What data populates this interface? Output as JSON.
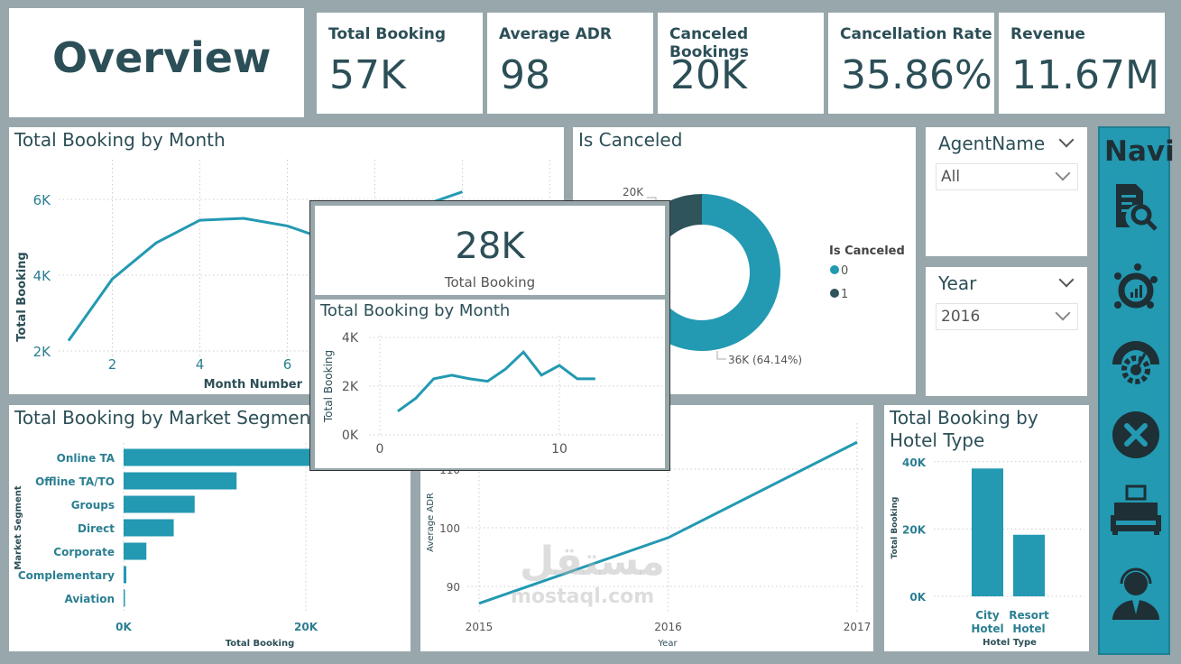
{
  "header": {
    "title": "Overview"
  },
  "kpis": [
    {
      "label": "Total Booking",
      "value": "57K"
    },
    {
      "label": "Average ADR",
      "value": "98"
    },
    {
      "label": "Canceled Bookings",
      "value": "20K"
    },
    {
      "label": "Cancellation Rate",
      "value": "35.86%"
    },
    {
      "label": "Revenue",
      "value": "11.67M"
    }
  ],
  "slicers": {
    "agent": {
      "title": "AgentName",
      "value": "All"
    },
    "year": {
      "title": "Year",
      "value": "2016"
    }
  },
  "nav": {
    "title": "Navi",
    "icons": [
      "report-search-icon",
      "customer-analytics-icon",
      "performance-gauge-icon",
      "cancel-icon",
      "hotel-room-icon",
      "support-agent-icon"
    ]
  },
  "tooltip": {
    "value": "28K",
    "label": "Total Booking"
  },
  "watermark": {
    "arabic": "مستقل",
    "latin": "mostaql.com"
  },
  "colors": {
    "accent": "#2399b2",
    "dark": "#2f545c",
    "background": "#97a7ab"
  },
  "chart_data": [
    {
      "id": "month",
      "type": "line",
      "title": "Total Booking by Month",
      "xlabel": "Month Number",
      "ylabel": "Total Booking",
      "x": [
        1,
        2,
        3,
        4,
        5,
        6,
        7,
        8,
        9,
        10
      ],
      "values": [
        2270,
        3900,
        4850,
        5450,
        5500,
        5300,
        4900,
        5300,
        5800,
        6200
      ],
      "xticks": [
        "2",
        "4",
        "6"
      ],
      "yticks": [
        "2K",
        "4K",
        "6K"
      ],
      "ylim": [
        2000,
        6200
      ],
      "grid": true
    },
    {
      "id": "tooltip_month",
      "type": "line",
      "title": "Total Booking by Month",
      "ylabel": "Total Booking",
      "x": [
        1,
        2,
        3,
        4,
        5,
        6,
        7,
        8,
        9,
        10,
        11,
        12
      ],
      "values": [
        970,
        1500,
        2300,
        2450,
        2300,
        2200,
        2700,
        3400,
        2450,
        2850,
        2300,
        2300
      ],
      "xticks": [
        "0",
        "10"
      ],
      "yticks": [
        "0K",
        "2K",
        "4K"
      ],
      "ylim": [
        0,
        4000
      ],
      "grid": true
    },
    {
      "id": "canceled",
      "type": "pie",
      "title": "Is Canceled",
      "legend_title": "Is Canceled",
      "categories": [
        "0",
        "1"
      ],
      "values": [
        36,
        20
      ],
      "labels": [
        "36K (64.14%)",
        "20K"
      ],
      "legend": "right"
    },
    {
      "id": "segment",
      "type": "bar",
      "orientation": "horizontal",
      "title": "Total Booking by Market Segment",
      "xlabel": "Total Booking",
      "ylabel": "Market Segment",
      "categories": [
        "Online TA",
        "Offline TA/TO",
        "Groups",
        "Direct",
        "Corporate",
        "Complementary",
        "Aviation"
      ],
      "values": [
        27000,
        12400,
        7800,
        5500,
        2500,
        300,
        100
      ],
      "xticks": [
        "0K",
        "20K"
      ],
      "grid": true
    },
    {
      "id": "adr",
      "type": "line",
      "xlabel": "Year",
      "ylabel": "Average ADR",
      "x": [
        2015,
        2016,
        2017
      ],
      "values": [
        87.1,
        98.3,
        114.6
      ],
      "xticks": [
        "2015",
        "2016",
        "2017"
      ],
      "yticks": [
        "90",
        "100",
        "110"
      ],
      "grid": true
    },
    {
      "id": "hotel",
      "type": "bar",
      "title": "Total Booking by Hotel Type",
      "xlabel": "Hotel Type",
      "ylabel": "Total Booking",
      "categories": [
        "City Hotel",
        "Resort Hotel"
      ],
      "values": [
        38000,
        18300
      ],
      "yticks": [
        "0K",
        "20K",
        "40K"
      ],
      "ylim": [
        0,
        40000
      ],
      "grid": true
    }
  ]
}
